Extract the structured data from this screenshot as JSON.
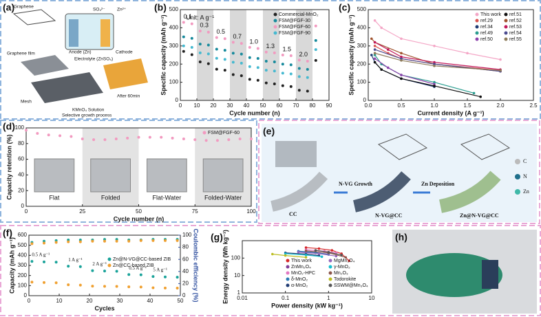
{
  "panel_labels": [
    "(a)",
    "(b)",
    "(c)",
    "(d)",
    "(e)",
    "(f)",
    "(g)",
    "(h)"
  ],
  "panel_a": {
    "texts": [
      "Graphene",
      "Graphene film",
      "SO₄²⁻",
      "Zn²⁺",
      "Anode (Zn)",
      "Electrolyte (ZnSO₄)",
      "Cathode",
      "Mesh",
      "KMnO₄ Solution",
      "After 60min",
      "Selective growth process"
    ]
  },
  "panel_e": {
    "texts": [
      "CC",
      "N-VG Growth",
      "N-VG@CC",
      "Zn Deposition",
      "Zn@N-VG@CC"
    ],
    "legend": [
      "C",
      "N",
      "Zn"
    ]
  },
  "chart_data": [
    {
      "type": "scatter",
      "xlabel": "Cycle number (n)",
      "ylabel": "Specific capacity (mAh g⁻¹)",
      "x": [
        2,
        7,
        12,
        17,
        22,
        27,
        32,
        37,
        42,
        47,
        52,
        57,
        62,
        67,
        72,
        77,
        82
      ],
      "xlim": [
        0,
        90
      ],
      "xticks": [
        0,
        10,
        20,
        30,
        40,
        50,
        60,
        70,
        80,
        90
      ],
      "ylim": [
        0,
        500
      ],
      "yticks": [
        0,
        100,
        200,
        300,
        400,
        500
      ],
      "bands": [
        [
          10,
          20
        ],
        [
          30,
          40
        ],
        [
          50,
          60
        ],
        [
          70,
          80
        ]
      ],
      "band_color": "#d9d9d9",
      "legend": "upper right",
      "annotations": [
        "Unit:  A g⁻¹",
        "0.1",
        "0.3",
        "0.5",
        "0.7",
        "1.0",
        "1.3",
        "1.5",
        "2.0"
      ],
      "series": [
        {
          "name": "Commercial-MnO₂",
          "color": "#222222",
          "values": [
            270,
            252,
            212,
            202,
            172,
            166,
            142,
            136,
            116,
            111,
            96,
            91,
            81,
            76,
            56,
            51,
            220
          ]
        },
        {
          "name": "FSM@FGF-30",
          "color": "#178a9c",
          "values": [
            350,
            342,
            310,
            305,
            282,
            276,
            260,
            255,
            236,
            231,
            216,
            212,
            200,
            196,
            176,
            171,
            330
          ]
        },
        {
          "name": "FSM@FGF-60",
          "color": "#f29ac0",
          "values": [
            430,
            422,
            382,
            376,
            346,
            340,
            320,
            314,
            292,
            286,
            266,
            262,
            250,
            246,
            222,
            216,
            410
          ]
        },
        {
          "name": "FSM@FGF-90",
          "color": "#46b9d0",
          "values": [
            300,
            292,
            262,
            256,
            232,
            226,
            210,
            205,
            186,
            181,
            166,
            162,
            150,
            146,
            131,
            126,
            280
          ]
        }
      ]
    },
    {
      "type": "line",
      "xlabel": "Current density (A g⁻¹)",
      "ylabel": "Specific capacity (mAh g⁻¹)",
      "xlim": [
        0,
        2.5
      ],
      "xticks": [
        {
          "value": 0,
          "label": "0.0"
        },
        0.5,
        {
          "value": 1,
          "label": "1.0"
        },
        1.5,
        {
          "value": 2,
          "label": "2.0"
        },
        2.5
      ],
      "ylim": [
        0,
        500
      ],
      "yticks": [
        0,
        100,
        200,
        300,
        400,
        500
      ],
      "legend": "upper right",
      "legend_columns": 2,
      "series": [
        {
          "name": "This work",
          "color": "#f4a6c6",
          "x": [
            0.1,
            0.2,
            0.5,
            1,
            1.5,
            2
          ],
          "values": [
            440,
            400,
            340,
            300,
            260,
            225
          ]
        },
        {
          "name": "ref.29",
          "color": "#d9534f",
          "x": [
            0.1,
            0.3,
            0.5,
            1,
            2
          ],
          "values": [
            300,
            260,
            230,
            200,
            165
          ]
        },
        {
          "name": "ref.34",
          "color": "#1f3b73",
          "x": [
            0.05,
            0.1,
            0.2,
            0.5,
            1
          ],
          "values": [
            250,
            210,
            170,
            120,
            75
          ]
        },
        {
          "name": "ref.49",
          "color": "#2a9d8f",
          "x": [
            0.1,
            0.2,
            0.5,
            1,
            1.6
          ],
          "values": [
            250,
            200,
            140,
            100,
            40
          ]
        },
        {
          "name": "ref.50",
          "color": "#8e44ad",
          "x": [
            0.1,
            0.3,
            0.5,
            1
          ],
          "values": [
            230,
            180,
            140,
            90
          ]
        },
        {
          "name": "ref.51",
          "color": "#111111",
          "x": [
            0.1,
            0.2,
            0.5,
            1,
            1.7
          ],
          "values": [
            210,
            170,
            120,
            80,
            20
          ]
        },
        {
          "name": "ref.52",
          "color": "#a0522d",
          "x": [
            0.05,
            0.1,
            0.5,
            1,
            2
          ],
          "values": [
            340,
            320,
            260,
            200,
            160
          ]
        },
        {
          "name": "ref.53",
          "color": "#c2185b",
          "x": [
            0.1,
            0.3,
            0.5,
            1,
            2
          ],
          "values": [
            320,
            280,
            240,
            210,
            170
          ]
        },
        {
          "name": "ref.54",
          "color": "#4b4b8f",
          "x": [
            0.1,
            0.5,
            1,
            2
          ],
          "values": [
            280,
            230,
            200,
            160
          ]
        },
        {
          "name": "ref.55",
          "color": "#8d7b5a",
          "x": [
            0.1,
            0.5,
            1,
            2
          ],
          "values": [
            260,
            220,
            190,
            165
          ]
        }
      ]
    },
    {
      "type": "scatter",
      "xlabel": "Cycle number (n)",
      "ylabel": "Capacity retention (%)",
      "x": [
        0,
        5,
        10,
        15,
        20,
        25,
        30,
        35,
        40,
        45,
        50,
        55,
        60,
        65,
        70,
        75,
        80,
        85,
        90,
        95,
        100
      ],
      "xlim": [
        0,
        100
      ],
      "xticks": [
        0,
        25,
        50,
        75,
        100
      ],
      "ylim": [
        0,
        100
      ],
      "yticks": [
        0,
        20,
        40,
        60,
        80,
        100
      ],
      "bands": [
        [
          25,
          50
        ],
        [
          75,
          100
        ]
      ],
      "band_color": "#e3e3e3",
      "legend": "upper right",
      "photo_captions": [
        "Flat",
        "Folded",
        "Flat-Water",
        "Folded-Water"
      ],
      "series": [
        {
          "name": "FSM@FGF-60",
          "color": "#f29ac0",
          "values": [
            97,
            93,
            91,
            90,
            89,
            86,
            85,
            85,
            86,
            87,
            88,
            88,
            88,
            87,
            86,
            85,
            84,
            84,
            85,
            86,
            86
          ]
        }
      ]
    },
    {
      "type": "scatter",
      "xlabel": "Cycles",
      "ylabel": "Capacity (mAh g⁻¹)",
      "y2label": "Coulombic efficiency (%)",
      "x": [
        1,
        5,
        9,
        13,
        17,
        21,
        25,
        29,
        33,
        37,
        41,
        45,
        49
      ],
      "xlim": [
        0,
        50
      ],
      "xticks": [
        0,
        10,
        20,
        30,
        40,
        50
      ],
      "ylim": [
        0,
        600
      ],
      "yticks": [
        0,
        100,
        200,
        300,
        400,
        500,
        600
      ],
      "y2lim": [
        0,
        100
      ],
      "y2ticks": [
        0,
        20,
        40,
        60,
        80,
        100
      ],
      "legend": "center right",
      "annotations": [
        "0.5 A g⁻¹",
        "1 A g⁻¹",
        "2 A g⁻¹",
        "0.5 A g⁻¹",
        "5 A g⁻¹"
      ],
      "series": [
        {
          "name": "Zn@N-VG@CC-based ZIB",
          "color": "#1aa39a",
          "values": [
            340,
            335,
            332,
            292,
            288,
            248,
            245,
            242,
            210,
            207,
            190,
            186,
            183
          ]
        },
        {
          "name": "Zn@CC-based ZIB",
          "color": "#f0a030",
          "values": [
            135,
            130,
            128,
            108,
            105,
            95,
            93,
            92,
            88,
            86,
            78,
            76,
            75
          ]
        },
        {
          "color": "#1aa39a",
          "axis": "y2",
          "values": [
            88,
            90,
            91,
            92,
            92,
            92,
            93,
            93,
            92,
            92,
            93,
            93,
            93
          ]
        },
        {
          "color": "#f0a030",
          "axis": "y2",
          "values": [
            86,
            87,
            88,
            89,
            89,
            90,
            90,
            90,
            90,
            91,
            91,
            91,
            91
          ]
        }
      ]
    },
    {
      "type": "line",
      "xlabel": "Power density (kW kg⁻¹)",
      "ylabel": "Energy density (Wh kg⁻¹)",
      "xlog": true,
      "ylog": true,
      "xlim": [
        0.01,
        10
      ],
      "xticks": [
        0.01,
        0.1,
        1,
        10
      ],
      "ylim": [
        1,
        1000
      ],
      "yticks": [
        1,
        10,
        100
      ],
      "legend": "lower right",
      "legend_columns": 2,
      "series": [
        {
          "name": "This work",
          "color": "#d62728",
          "x": [
            0.3,
            0.6,
            1.2,
            2,
            3
          ],
          "values": [
            400,
            350,
            280,
            180,
            70
          ]
        },
        {
          "name": "ZnMn₂O₄",
          "color": "#7f3f98",
          "x": [
            0.2,
            0.5,
            1
          ],
          "values": [
            230,
            200,
            170
          ]
        },
        {
          "name": "MnO₂-HPC",
          "color": "#e377c2",
          "x": [
            0.3,
            0.8,
            1.5
          ],
          "values": [
            300,
            250,
            200
          ]
        },
        {
          "name": "δ-MnO₂",
          "color": "#2c7bb6",
          "x": [
            0.2,
            0.5,
            1
          ],
          "values": [
            250,
            210,
            160
          ]
        },
        {
          "name": "α-MnO₂",
          "color": "#1f3b73",
          "x": [
            0.1,
            0.3,
            0.6
          ],
          "values": [
            200,
            170,
            140
          ]
        },
        {
          "name": "MgMn₂O₄",
          "color": "#9467bd",
          "x": [
            0.2,
            0.6,
            1.5
          ],
          "values": [
            220,
            180,
            130
          ]
        },
        {
          "name": "γ-MnO₂",
          "color": "#17becf",
          "x": [
            0.1,
            0.3,
            0.7
          ],
          "values": [
            180,
            150,
            120
          ]
        },
        {
          "name": "Mn₂O₃",
          "color": "#8c564b",
          "x": [
            0.3,
            1,
            2.5
          ],
          "values": [
            260,
            200,
            110
          ]
        },
        {
          "name": "Todorokite",
          "color": "#bcbd22",
          "x": [
            0.05,
            0.1,
            0.3
          ],
          "values": [
            170,
            140,
            110
          ]
        },
        {
          "name": "SSWM@Mn₃O₄",
          "color": "#555555",
          "x": [
            0.5,
            1,
            2
          ],
          "values": [
            280,
            220,
            150
          ]
        }
      ]
    }
  ]
}
